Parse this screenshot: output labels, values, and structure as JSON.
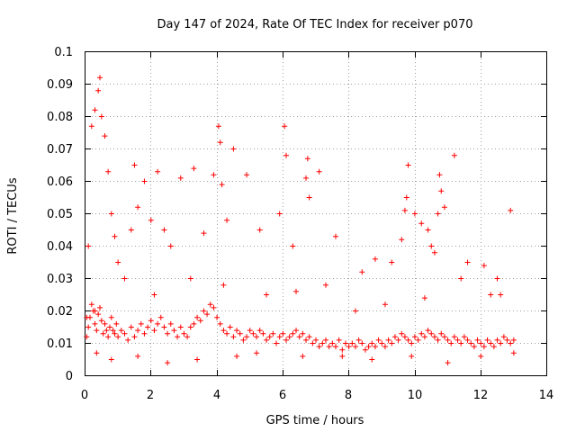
{
  "chart_data": {
    "type": "scatter",
    "title": "Day 147 of 2024, Rate Of TEC Index for receiver p070",
    "xlabel": "GPS time / hours",
    "ylabel": "ROTI / TECUs",
    "xlim": [
      0,
      14
    ],
    "ylim": [
      0,
      0.1
    ],
    "grid": true,
    "marker": "+",
    "x_ticks": [
      "0",
      "2",
      "4",
      "6",
      "8",
      "10",
      "12",
      "14"
    ],
    "y_ticks": [
      "0",
      "0.01",
      "0.02",
      "0.03",
      "0.04",
      "0.05",
      "0.06",
      "0.07",
      "0.08",
      "0.09",
      "0.1"
    ],
    "series": [
      {
        "name": "ROTI",
        "color": "#ff0000",
        "x": [
          0.05,
          0.1,
          0.15,
          0.2,
          0.25,
          0.3,
          0.35,
          0.4,
          0.45,
          0.5,
          0.55,
          0.6,
          0.65,
          0.7,
          0.75,
          0.8,
          0.85,
          0.9,
          0.95,
          1.0,
          1.1,
          1.2,
          1.3,
          1.4,
          1.5,
          1.6,
          1.7,
          1.8,
          1.9,
          2.0,
          2.1,
          2.2,
          2.3,
          2.4,
          2.5,
          2.6,
          2.7,
          2.8,
          2.9,
          3.0,
          3.1,
          3.2,
          3.3,
          3.4,
          3.5,
          3.6,
          3.7,
          3.8,
          3.9,
          4.0,
          4.1,
          4.2,
          4.3,
          4.4,
          4.5,
          4.6,
          4.7,
          4.8,
          4.9,
          5.0,
          5.1,
          5.2,
          5.3,
          5.4,
          5.5,
          5.6,
          5.7,
          5.8,
          5.9,
          6.0,
          6.1,
          6.2,
          6.3,
          6.4,
          6.5,
          6.6,
          6.7,
          6.8,
          6.9,
          7.0,
          7.1,
          7.2,
          7.3,
          7.4,
          7.5,
          7.6,
          7.7,
          7.8,
          7.9,
          8.0,
          8.1,
          8.2,
          8.3,
          8.4,
          8.5,
          8.6,
          8.7,
          8.8,
          8.9,
          9.0,
          9.1,
          9.2,
          9.3,
          9.4,
          9.5,
          9.6,
          9.7,
          9.8,
          9.9,
          10.0,
          10.1,
          10.2,
          10.3,
          10.4,
          10.5,
          10.6,
          10.7,
          10.8,
          10.9,
          11.0,
          11.1,
          11.2,
          11.3,
          11.4,
          11.5,
          11.6,
          11.7,
          11.8,
          11.9,
          12.0,
          12.1,
          12.2,
          12.3,
          12.4,
          12.5,
          12.6,
          12.7,
          12.8,
          12.9,
          13.0,
          0.1,
          0.2,
          0.3,
          0.4,
          0.45,
          0.5,
          0.6,
          0.7,
          0.8,
          0.9,
          1.0,
          1.4,
          1.5,
          1.6,
          1.8,
          2.0,
          2.2,
          2.4,
          2.6,
          2.9,
          3.3,
          3.6,
          3.9,
          4.05,
          4.1,
          4.15,
          4.3,
          4.5,
          4.9,
          5.3,
          5.9,
          6.05,
          6.1,
          6.3,
          6.7,
          6.75,
          6.8,
          7.1,
          7.6,
          8.4,
          8.8,
          9.3,
          9.6,
          9.7,
          9.75,
          9.8,
          10.0,
          10.2,
          10.4,
          10.5,
          10.6,
          10.7,
          10.75,
          10.8,
          10.9,
          11.2,
          11.6,
          12.1,
          12.3,
          12.5,
          12.9,
          0.3,
          1.2,
          2.1,
          3.2,
          4.2,
          5.5,
          6.4,
          7.3,
          8.2,
          9.1,
          10.3,
          11.4,
          12.6,
          0.05,
          0.35,
          0.8,
          1.6,
          2.5,
          3.4,
          4.6,
          5.2,
          6.6,
          7.8,
          8.7,
          9.9,
          11.0,
          12.0,
          13.0
        ],
        "y": [
          0.012,
          0.015,
          0.018,
          0.022,
          0.02,
          0.016,
          0.014,
          0.019,
          0.021,
          0.017,
          0.013,
          0.016,
          0.014,
          0.012,
          0.015,
          0.018,
          0.014,
          0.013,
          0.016,
          0.012,
          0.014,
          0.013,
          0.011,
          0.015,
          0.012,
          0.014,
          0.016,
          0.013,
          0.015,
          0.017,
          0.014,
          0.016,
          0.018,
          0.015,
          0.013,
          0.016,
          0.014,
          0.012,
          0.015,
          0.013,
          0.012,
          0.015,
          0.016,
          0.018,
          0.017,
          0.02,
          0.019,
          0.022,
          0.021,
          0.018,
          0.016,
          0.014,
          0.013,
          0.015,
          0.012,
          0.014,
          0.013,
          0.011,
          0.012,
          0.014,
          0.013,
          0.012,
          0.014,
          0.013,
          0.011,
          0.012,
          0.013,
          0.01,
          0.012,
          0.013,
          0.011,
          0.012,
          0.013,
          0.014,
          0.012,
          0.013,
          0.011,
          0.012,
          0.01,
          0.011,
          0.009,
          0.01,
          0.011,
          0.009,
          0.01,
          0.009,
          0.011,
          0.008,
          0.01,
          0.009,
          0.01,
          0.009,
          0.011,
          0.01,
          0.008,
          0.009,
          0.01,
          0.009,
          0.011,
          0.01,
          0.009,
          0.011,
          0.01,
          0.012,
          0.011,
          0.013,
          0.012,
          0.011,
          0.01,
          0.012,
          0.011,
          0.013,
          0.012,
          0.014,
          0.013,
          0.012,
          0.011,
          0.013,
          0.012,
          0.011,
          0.01,
          0.012,
          0.011,
          0.01,
          0.012,
          0.011,
          0.01,
          0.009,
          0.011,
          0.01,
          0.009,
          0.011,
          0.01,
          0.009,
          0.011,
          0.01,
          0.012,
          0.011,
          0.01,
          0.011,
          0.04,
          0.077,
          0.082,
          0.088,
          0.092,
          0.08,
          0.074,
          0.063,
          0.05,
          0.043,
          0.035,
          0.045,
          0.065,
          0.052,
          0.06,
          0.048,
          0.063,
          0.045,
          0.04,
          0.061,
          0.064,
          0.044,
          0.062,
          0.077,
          0.072,
          0.059,
          0.048,
          0.07,
          0.062,
          0.045,
          0.05,
          0.077,
          0.068,
          0.04,
          0.061,
          0.067,
          0.055,
          0.063,
          0.043,
          0.032,
          0.036,
          0.035,
          0.042,
          0.051,
          0.055,
          0.065,
          0.05,
          0.047,
          0.045,
          0.04,
          0.038,
          0.05,
          0.062,
          0.057,
          0.052,
          0.068,
          0.035,
          0.034,
          0.025,
          0.03,
          0.051,
          0.02,
          0.03,
          0.025,
          0.03,
          0.028,
          0.025,
          0.026,
          0.028,
          0.02,
          0.022,
          0.024,
          0.03,
          0.025,
          0.018,
          0.007,
          0.005,
          0.006,
          0.004,
          0.005,
          0.006,
          0.007,
          0.006,
          0.006,
          0.005,
          0.006,
          0.004,
          0.006,
          0.007
        ]
      }
    ]
  }
}
